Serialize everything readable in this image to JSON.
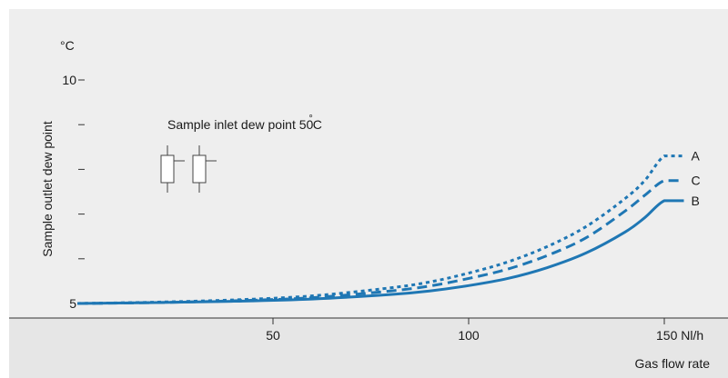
{
  "chart_data": {
    "type": "line",
    "xlabel": "Gas flow rate",
    "ylabel": "Sample outlet dew point",
    "y_unit": "°C",
    "x_unit_label": "150 Nl/h",
    "annotation": "Sample inlet dew point 50°C",
    "annotation_main": "Sample inlet dew point 50",
    "annotation_deg": "°",
    "annotation_unit": "C",
    "xlim": [
      0,
      165
    ],
    "ylim": [
      5,
      10
    ],
    "x_ticks": [
      {
        "value": 50,
        "label": "50"
      },
      {
        "value": 100,
        "label": "100"
      },
      {
        "value": 150,
        "label": "150 Nl/h"
      }
    ],
    "y_ticks": [
      {
        "value": 5,
        "label": "5"
      },
      {
        "value": 6,
        "label": ""
      },
      {
        "value": 7,
        "label": ""
      },
      {
        "value": 8,
        "label": ""
      },
      {
        "value": 9,
        "label": ""
      },
      {
        "value": 10,
        "label": "10"
      }
    ],
    "grid": false,
    "colors": {
      "line": "#1f77b4",
      "plot_background": "#eeeeee",
      "axis_band": "#e6e6e6"
    },
    "series": [
      {
        "name": "A",
        "style": "dotted",
        "x": [
          0,
          20,
          40,
          60,
          80,
          90,
          100,
          110,
          120,
          130,
          140,
          145,
          150,
          155
        ],
        "y": [
          5.0,
          5.03,
          5.08,
          5.17,
          5.35,
          5.48,
          5.68,
          5.93,
          6.27,
          6.72,
          7.35,
          7.75,
          8.3,
          8.3
        ]
      },
      {
        "name": "C",
        "style": "dashed",
        "x": [
          0,
          20,
          40,
          60,
          80,
          90,
          100,
          110,
          120,
          130,
          140,
          145,
          150,
          155
        ],
        "y": [
          5.0,
          5.02,
          5.06,
          5.13,
          5.28,
          5.39,
          5.56,
          5.77,
          6.07,
          6.47,
          7.07,
          7.42,
          7.75,
          7.75
        ]
      },
      {
        "name": "B",
        "style": "solid",
        "x": [
          0,
          20,
          40,
          60,
          80,
          90,
          100,
          110,
          120,
          130,
          140,
          145,
          150,
          155
        ],
        "y": [
          5.0,
          5.02,
          5.05,
          5.1,
          5.2,
          5.28,
          5.4,
          5.56,
          5.8,
          6.13,
          6.6,
          6.92,
          7.3,
          7.3
        ]
      }
    ]
  }
}
